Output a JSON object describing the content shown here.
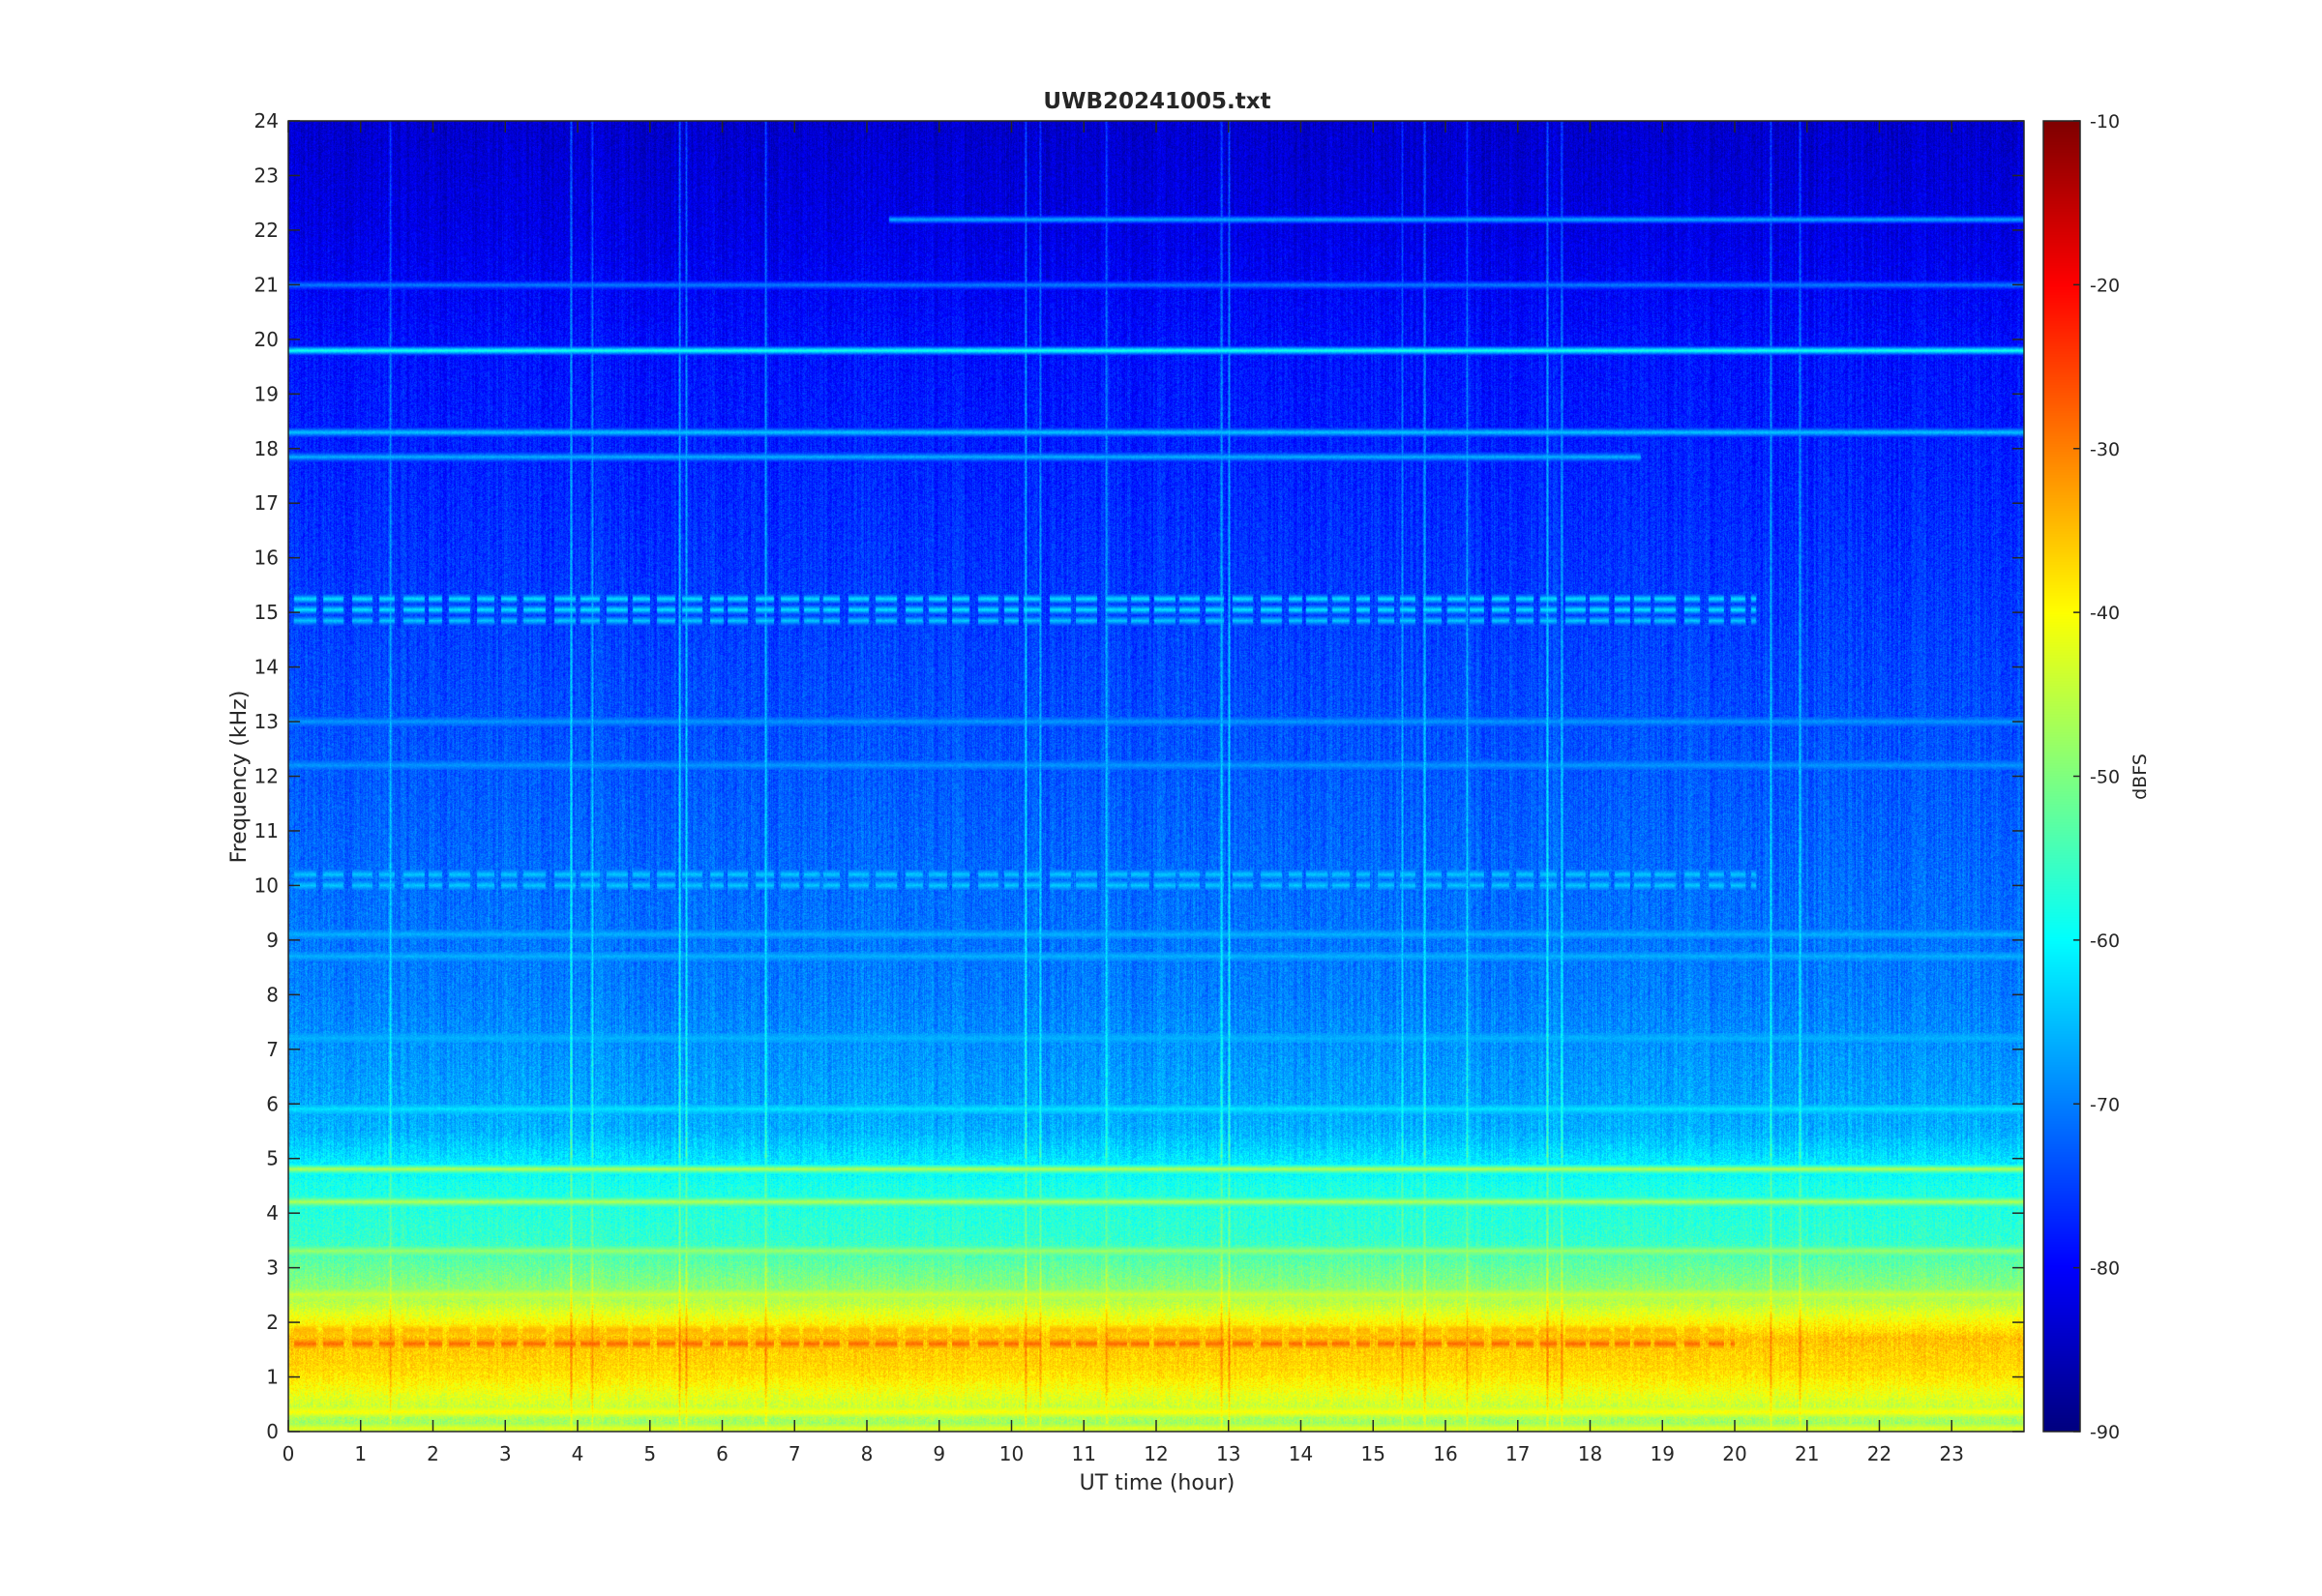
{
  "chart_data": {
    "type": "heatmap",
    "title": "UWB20241005.txt",
    "xlabel": "UT time (hour)",
    "ylabel": "Frequency (kHz)",
    "xlim": [
      0,
      24
    ],
    "ylim": [
      0,
      24
    ],
    "x_ticks": [
      "0",
      "1",
      "2",
      "3",
      "4",
      "5",
      "6",
      "7",
      "8",
      "9",
      "10",
      "11",
      "12",
      "13",
      "14",
      "15",
      "16",
      "17",
      "18",
      "19",
      "20",
      "21",
      "22",
      "23"
    ],
    "y_ticks": [
      "0",
      "1",
      "2",
      "3",
      "4",
      "5",
      "6",
      "7",
      "8",
      "9",
      "10",
      "11",
      "12",
      "13",
      "14",
      "15",
      "16",
      "17",
      "18",
      "19",
      "20",
      "21",
      "22",
      "23",
      "24"
    ],
    "colorbar": {
      "label": "dBFS",
      "limits": [
        -90,
        -10
      ],
      "ticks": [
        "-10",
        "-20",
        "-30",
        "-40",
        "-50",
        "-60",
        "-70",
        "-80",
        "-90"
      ],
      "colormap": "jet"
    },
    "grid": false,
    "legend": "none",
    "features": {
      "background_profile_dbfs": [
        {
          "freq_khz": 0.1,
          "level": -48
        },
        {
          "freq_khz": 1.0,
          "level": -38
        },
        {
          "freq_khz": 1.7,
          "level": -35
        },
        {
          "freq_khz": 2.5,
          "level": -48
        },
        {
          "freq_khz": 3.5,
          "level": -56
        },
        {
          "freq_khz": 4.5,
          "level": -58
        },
        {
          "freq_khz": 5.5,
          "level": -66
        },
        {
          "freq_khz": 8.0,
          "level": -70
        },
        {
          "freq_khz": 12.0,
          "level": -73
        },
        {
          "freq_khz": 16.0,
          "level": -76
        },
        {
          "freq_khz": 20.0,
          "level": -79
        },
        {
          "freq_khz": 22.0,
          "level": -82
        },
        {
          "freq_khz": 24.0,
          "level": -84
        }
      ],
      "horizontal_lines": [
        {
          "freq_khz": 19.8,
          "level": -58,
          "t_start": 0,
          "t_end": 24
        },
        {
          "freq_khz": 18.3,
          "level": -64,
          "t_start": 0,
          "t_end": 24
        },
        {
          "freq_khz": 17.85,
          "level": -66,
          "t_start": 0,
          "t_end": 18.7
        },
        {
          "freq_khz": 15.25,
          "level": -62,
          "t_start": 0,
          "t_end": 20.3
        },
        {
          "freq_khz": 15.05,
          "level": -62,
          "t_start": 0,
          "t_end": 20.3
        },
        {
          "freq_khz": 14.85,
          "level": -64,
          "t_start": 0,
          "t_end": 20.3
        },
        {
          "freq_khz": 10.2,
          "level": -64,
          "t_start": 0,
          "t_end": 20.3
        },
        {
          "freq_khz": 10.0,
          "level": -64,
          "t_start": 0,
          "t_end": 20.3
        },
        {
          "freq_khz": 22.2,
          "level": -66,
          "t_start": 8.3,
          "t_end": 24
        },
        {
          "freq_khz": 21.0,
          "level": -70,
          "t_start": 0,
          "t_end": 24
        },
        {
          "freq_khz": 13.0,
          "level": -68,
          "t_start": 0,
          "t_end": 24
        },
        {
          "freq_khz": 12.2,
          "level": -68,
          "t_start": 0,
          "t_end": 24
        },
        {
          "freq_khz": 9.1,
          "level": -66,
          "t_start": 0,
          "t_end": 24
        },
        {
          "freq_khz": 8.7,
          "level": -66,
          "t_start": 0,
          "t_end": 24
        },
        {
          "freq_khz": 7.2,
          "level": -66,
          "t_start": 0,
          "t_end": 24
        },
        {
          "freq_khz": 5.9,
          "level": -62,
          "t_start": 0,
          "t_end": 24
        },
        {
          "freq_khz": 4.8,
          "level": -46,
          "t_start": 0,
          "t_end": 24
        },
        {
          "freq_khz": 4.2,
          "level": -46,
          "t_start": 0,
          "t_end": 24
        },
        {
          "freq_khz": 3.3,
          "level": -48,
          "t_start": 0,
          "t_end": 24
        },
        {
          "freq_khz": 2.5,
          "level": -44,
          "t_start": 0,
          "t_end": 24
        },
        {
          "freq_khz": 1.85,
          "level": -34,
          "t_start": 0,
          "t_end": 20.0
        },
        {
          "freq_khz": 1.6,
          "level": -28,
          "t_start": 0,
          "t_end": 20.0
        },
        {
          "freq_khz": 1.2,
          "level": -40,
          "t_start": 0,
          "t_end": 24
        },
        {
          "freq_khz": 0.35,
          "level": -40,
          "t_start": 0,
          "t_end": 24
        },
        {
          "freq_khz": 0.05,
          "level": -42,
          "t_start": 0,
          "t_end": 24
        }
      ],
      "vertical_lines_hours": [
        1.4,
        3.9,
        4.2,
        5.4,
        5.5,
        6.6,
        10.2,
        10.4,
        11.3,
        12.9,
        13.0,
        15.4,
        15.7,
        16.3,
        17.4,
        17.6,
        20.5,
        20.9
      ]
    }
  }
}
